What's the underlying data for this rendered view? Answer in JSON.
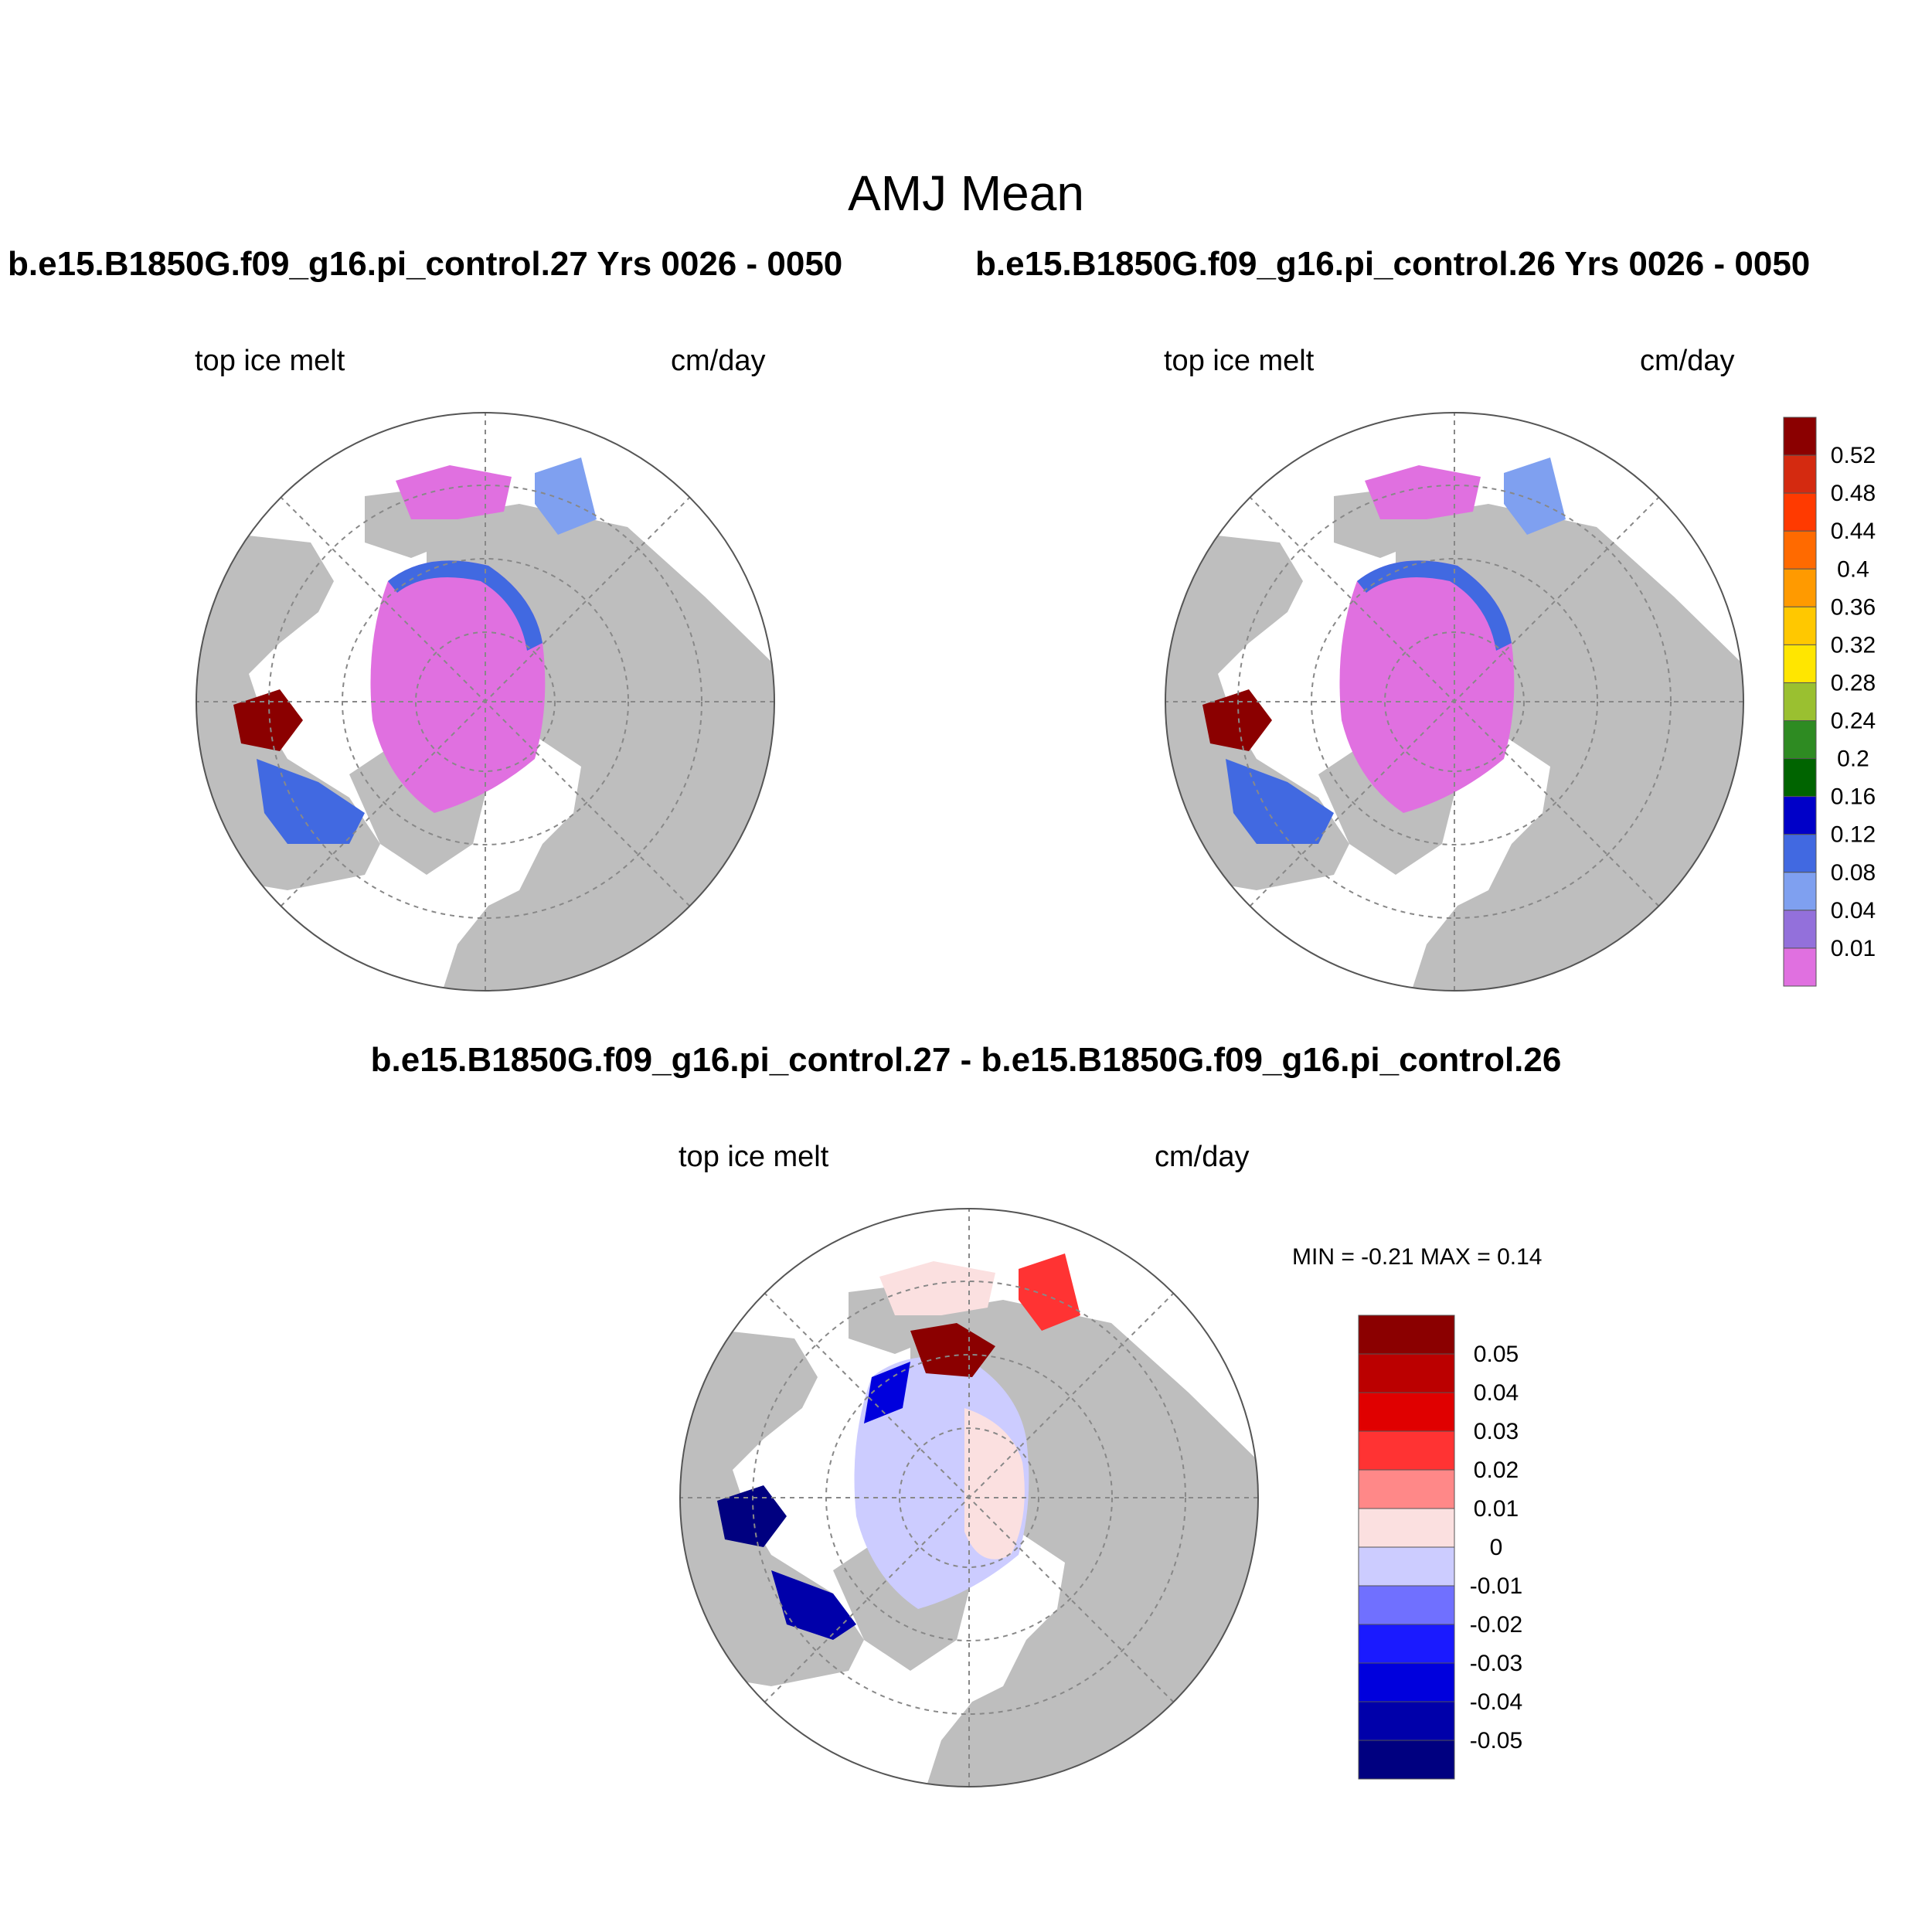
{
  "title": "AMJ Mean",
  "panels": [
    {
      "id": "left",
      "title": "b.e15.B1850G.f09_g16.pi_control.27  Yrs 0026 - 0050",
      "variable": "top ice melt",
      "units": "cm/day"
    },
    {
      "id": "right",
      "title": "b.e15.B1850G.f09_g16.pi_control.26  Yrs 0026 - 0050",
      "variable": "top ice melt",
      "units": "cm/day"
    },
    {
      "id": "diff",
      "title": "b.e15.B1850G.f09_g16.pi_control.27 - b.e15.B1850G.f09_g16.pi_control.26",
      "variable": "top ice melt",
      "units": "cm/day",
      "stats": "MIN =  -0.21 MAX =   0.14"
    }
  ],
  "colorbar_main": {
    "labels": [
      "0.52",
      "0.48",
      "0.44",
      "0.4",
      "0.36",
      "0.32",
      "0.28",
      "0.24",
      "0.2",
      "0.16",
      "0.12",
      "0.08",
      "0.04",
      "0.01"
    ],
    "colors": [
      "#8b0000",
      "#d42a10",
      "#ff3a00",
      "#ff6a00",
      "#ff9a00",
      "#ffc800",
      "#ffe600",
      "#9ac030",
      "#2e8b22",
      "#006400",
      "#0000c8",
      "#4169e1",
      "#7fa0f0",
      "#9370db",
      "#e070e0"
    ]
  },
  "colorbar_diff": {
    "labels": [
      "0.05",
      "0.04",
      "0.03",
      "0.02",
      "0.01",
      "0",
      "-0.01",
      "-0.02",
      "-0.03",
      "-0.04",
      "-0.05"
    ],
    "colors": [
      "#8b0000",
      "#bb0000",
      "#e00000",
      "#ff3333",
      "#ff8888",
      "#fbe0e0",
      "#ccccff",
      "#7070ff",
      "#1a1aff",
      "#0000dd",
      "#0000aa",
      "#000080"
    ]
  },
  "map_colors": {
    "land": "#bebebe",
    "ocean": "#ffffff",
    "grid": "#888888"
  }
}
